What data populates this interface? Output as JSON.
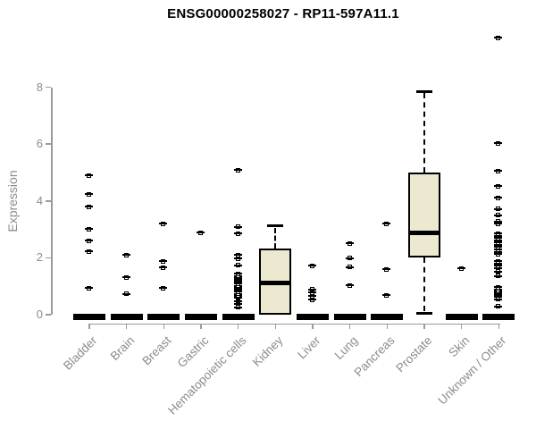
{
  "chart_data": {
    "type": "boxplot",
    "title": "ENSG00000258027 - RP11-597A11.1",
    "ylabel": "Expression",
    "xlabel": "",
    "ylim": [
      0,
      8
    ],
    "yticks": [
      0,
      2,
      4,
      6,
      8
    ],
    "grid": false,
    "legend": "none",
    "box_fill_color": "#ede8d0",
    "box_border_color": "#000000",
    "axis_color": "#9a9a9a",
    "tick_text_color": "#8c8c8c",
    "title_color": "#000000",
    "categories": [
      {
        "label": "Bladder",
        "box": {
          "q1": 0,
          "median": 0,
          "q3": 0,
          "whisker_low": 0,
          "whisker_high": 0
        },
        "outliers": [
          4.88,
          4.22,
          3.78,
          3.0,
          2.58,
          2.21,
          0.92
        ]
      },
      {
        "label": "Brain",
        "box": {
          "q1": 0,
          "median": 0,
          "q3": 0,
          "whisker_low": 0,
          "whisker_high": 0
        },
        "outliers": [
          2.08,
          1.3,
          0.71
        ]
      },
      {
        "label": "Breast",
        "box": {
          "q1": 0,
          "median": 0,
          "q3": 0,
          "whisker_low": 0,
          "whisker_high": 0
        },
        "outliers": [
          3.19,
          1.87,
          1.65,
          0.92
        ]
      },
      {
        "label": "Gastric",
        "box": {
          "q1": 0,
          "median": 0,
          "q3": 0,
          "whisker_low": 0,
          "whisker_high": 0
        },
        "outliers": [
          2.87
        ]
      },
      {
        "label": "Hematopoietic cells",
        "box": {
          "q1": 0,
          "median": 0,
          "q3": 0,
          "whisker_low": 0,
          "whisker_high": 0
        },
        "outliers": [
          5.07,
          3.08,
          2.84,
          2.08,
          1.95,
          1.72,
          1.42,
          1.35,
          1.28,
          1.21,
          1.14,
          1.07,
          1.0,
          0.93,
          0.86,
          0.79,
          0.72,
          0.65,
          0.59,
          0.45,
          0.35,
          0.25
        ]
      },
      {
        "label": "Kidney",
        "box": {
          "q1": 0,
          "median": 1.11,
          "q3": 2.34,
          "whisker_low": 0,
          "whisker_high": 3.12
        },
        "outliers": []
      },
      {
        "label": "Liver",
        "box": {
          "q1": 0,
          "median": 0,
          "q3": 0,
          "whisker_low": 0,
          "whisker_high": 0
        },
        "outliers": [
          1.71,
          0.87,
          0.76,
          0.64,
          0.51
        ]
      },
      {
        "label": "Lung",
        "box": {
          "q1": 0,
          "median": 0,
          "q3": 0,
          "whisker_low": 0,
          "whisker_high": 0
        },
        "outliers": [
          2.49,
          1.97,
          1.66,
          1.01
        ]
      },
      {
        "label": "Pancreas",
        "box": {
          "q1": 0,
          "median": 0,
          "q3": 0,
          "whisker_low": 0,
          "whisker_high": 0
        },
        "outliers": [
          3.19,
          1.58,
          0.67
        ]
      },
      {
        "label": "Prostate",
        "box": {
          "q1": 2.02,
          "median": 2.88,
          "q3": 5.0,
          "whisker_low": 0.05,
          "whisker_high": 7.86
        },
        "outliers": []
      },
      {
        "label": "Skin",
        "box": {
          "q1": 0,
          "median": 0,
          "q3": 0,
          "whisker_low": 0,
          "whisker_high": 0
        },
        "outliers": [
          1.61
        ]
      },
      {
        "label": "Unknown / Other",
        "box": {
          "q1": 0,
          "median": 0,
          "q3": 0,
          "whisker_low": 0,
          "whisker_high": 0
        },
        "outliers": [
          9.73,
          6.01,
          5.04,
          4.51,
          4.1,
          3.7,
          3.49,
          3.26,
          3.18,
          2.84,
          2.76,
          2.68,
          2.6,
          2.52,
          2.44,
          2.36,
          2.28,
          2.2,
          2.11,
          1.87,
          1.78,
          1.7,
          1.63,
          1.5,
          1.34,
          0.95,
          0.88,
          0.81,
          0.74,
          0.67,
          0.6,
          0.53,
          0.27
        ]
      }
    ]
  }
}
